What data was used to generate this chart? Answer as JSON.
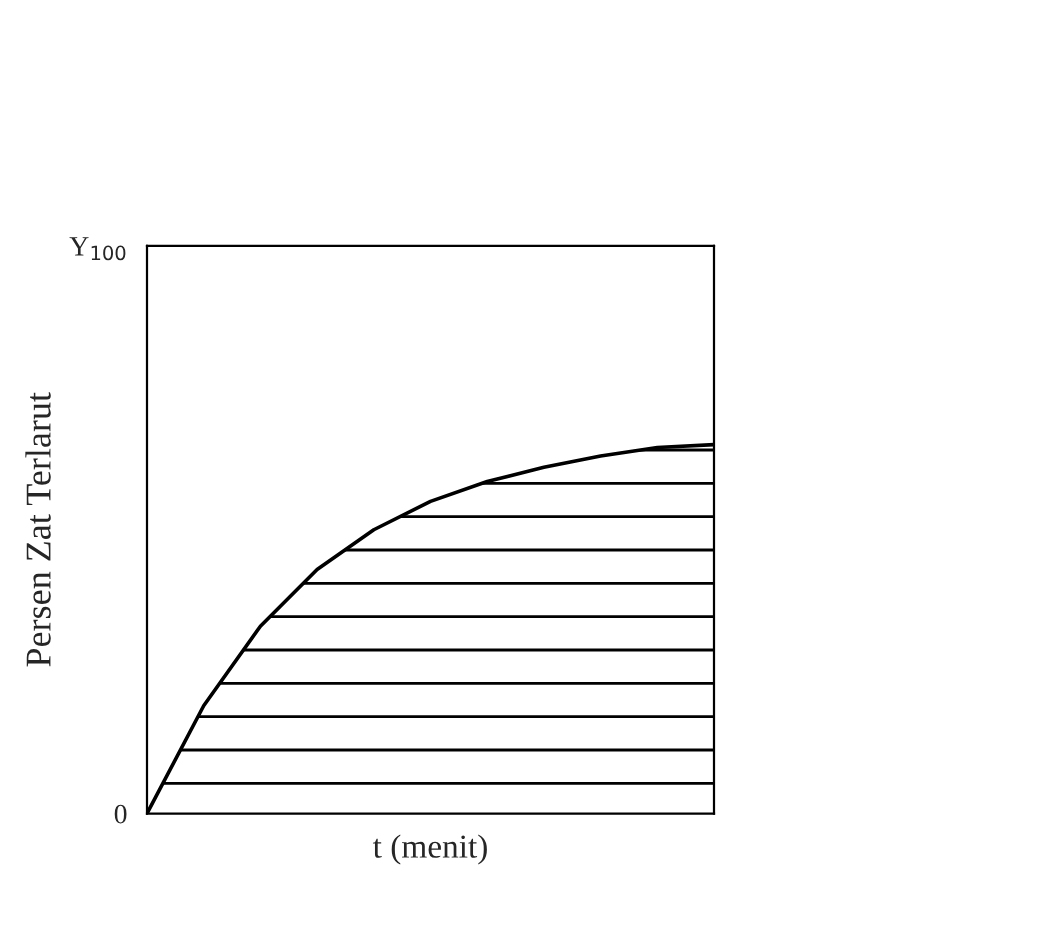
{
  "chart_data": {
    "type": "area",
    "ylabel": "Persen Zat Terlarut",
    "xlabel": "t (menit)",
    "categories": [
      null,
      null,
      null,
      null,
      null,
      null,
      null,
      null,
      null,
      null,
      null
    ],
    "values": [
      0,
      19,
      33,
      43,
      50,
      55,
      58.5,
      61,
      63,
      64.5,
      65
    ],
    "color": "#000000",
    "ylim": [
      0,
      100
    ],
    "yticks": [
      {
        "value": 0,
        "label": "0"
      },
      {
        "value": 100,
        "label": "Y$_{100}$"
      }
    ],
    "grid": false
  }
}
